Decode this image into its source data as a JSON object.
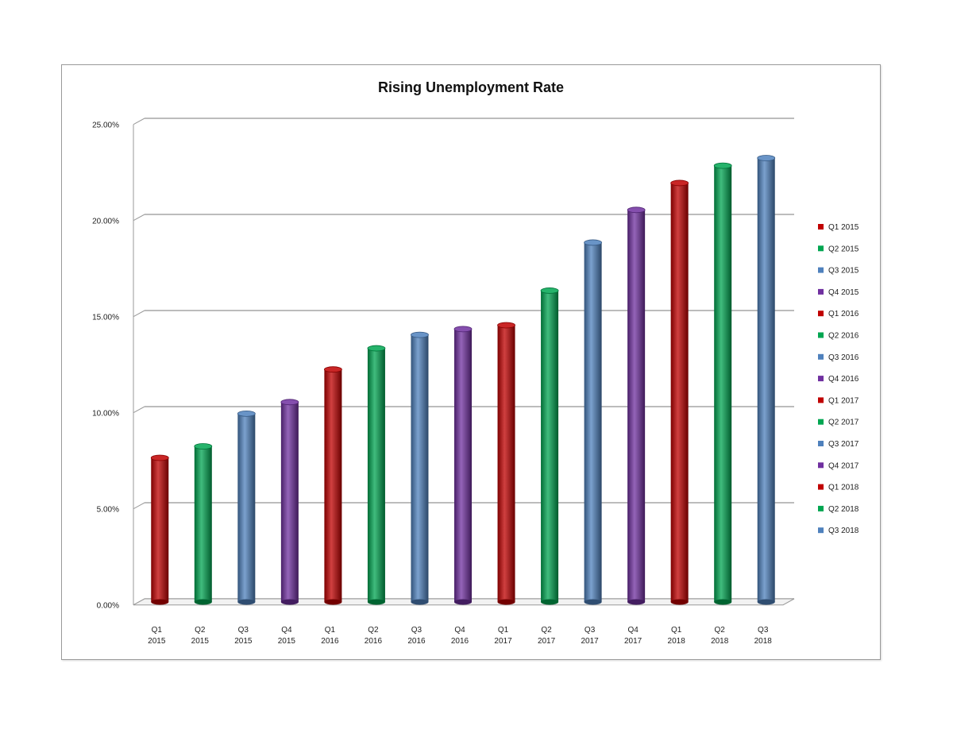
{
  "chart_data": {
    "type": "bar",
    "title": "Rising Unemployment Rate",
    "xlabel": "",
    "ylabel": "",
    "ylim": [
      0,
      0.25
    ],
    "yticks": [
      "0.00%",
      "5.00%",
      "10.00%",
      "15.00%",
      "20.00%",
      "25.00%"
    ],
    "grid": true,
    "legend_position": "right",
    "categories": [
      "Q1 2015",
      "Q2 2015",
      "Q3 2015",
      "Q4 2015",
      "Q1 2016",
      "Q2 2016",
      "Q3 2016",
      "Q4 2016",
      "Q1 2017",
      "Q2 2017",
      "Q3 2017",
      "Q4 2017",
      "Q1 2018",
      "Q2 2018",
      "Q3 2018"
    ],
    "category_lines": [
      [
        "Q1",
        "2015"
      ],
      [
        "Q2",
        "2015"
      ],
      [
        "Q3",
        "2015"
      ],
      [
        "Q4",
        "2015"
      ],
      [
        "Q1",
        "2016"
      ],
      [
        "Q2",
        "2016"
      ],
      [
        "Q3",
        "2016"
      ],
      [
        "Q4",
        "2016"
      ],
      [
        "Q1",
        "2017"
      ],
      [
        "Q2",
        "2017"
      ],
      [
        "Q3",
        "2017"
      ],
      [
        "Q4",
        "2017"
      ],
      [
        "Q1",
        "2018"
      ],
      [
        "Q2",
        "2018"
      ],
      [
        "Q3",
        "2018"
      ]
    ],
    "values": [
      0.075,
      0.081,
      0.098,
      0.104,
      0.121,
      0.132,
      0.139,
      0.142,
      0.144,
      0.162,
      0.187,
      0.204,
      0.218,
      0.227,
      0.231
    ],
    "colors": [
      "#c00000",
      "#00a651",
      "#4f81bd",
      "#7030a0",
      "#c00000",
      "#00a651",
      "#4f81bd",
      "#7030a0",
      "#c00000",
      "#00a651",
      "#4f81bd",
      "#7030a0",
      "#c00000",
      "#00a651",
      "#4f81bd"
    ],
    "legend": [
      "Q1 2015",
      "Q2 2015",
      "Q3 2015",
      "Q4 2015",
      "Q1 2016",
      "Q2 2016",
      "Q3 2016",
      "Q4 2016",
      "Q1 2017",
      "Q2 2017",
      "Q3 2017",
      "Q4 2017",
      "Q1 2018",
      "Q2 2018",
      "Q3 2018"
    ]
  }
}
